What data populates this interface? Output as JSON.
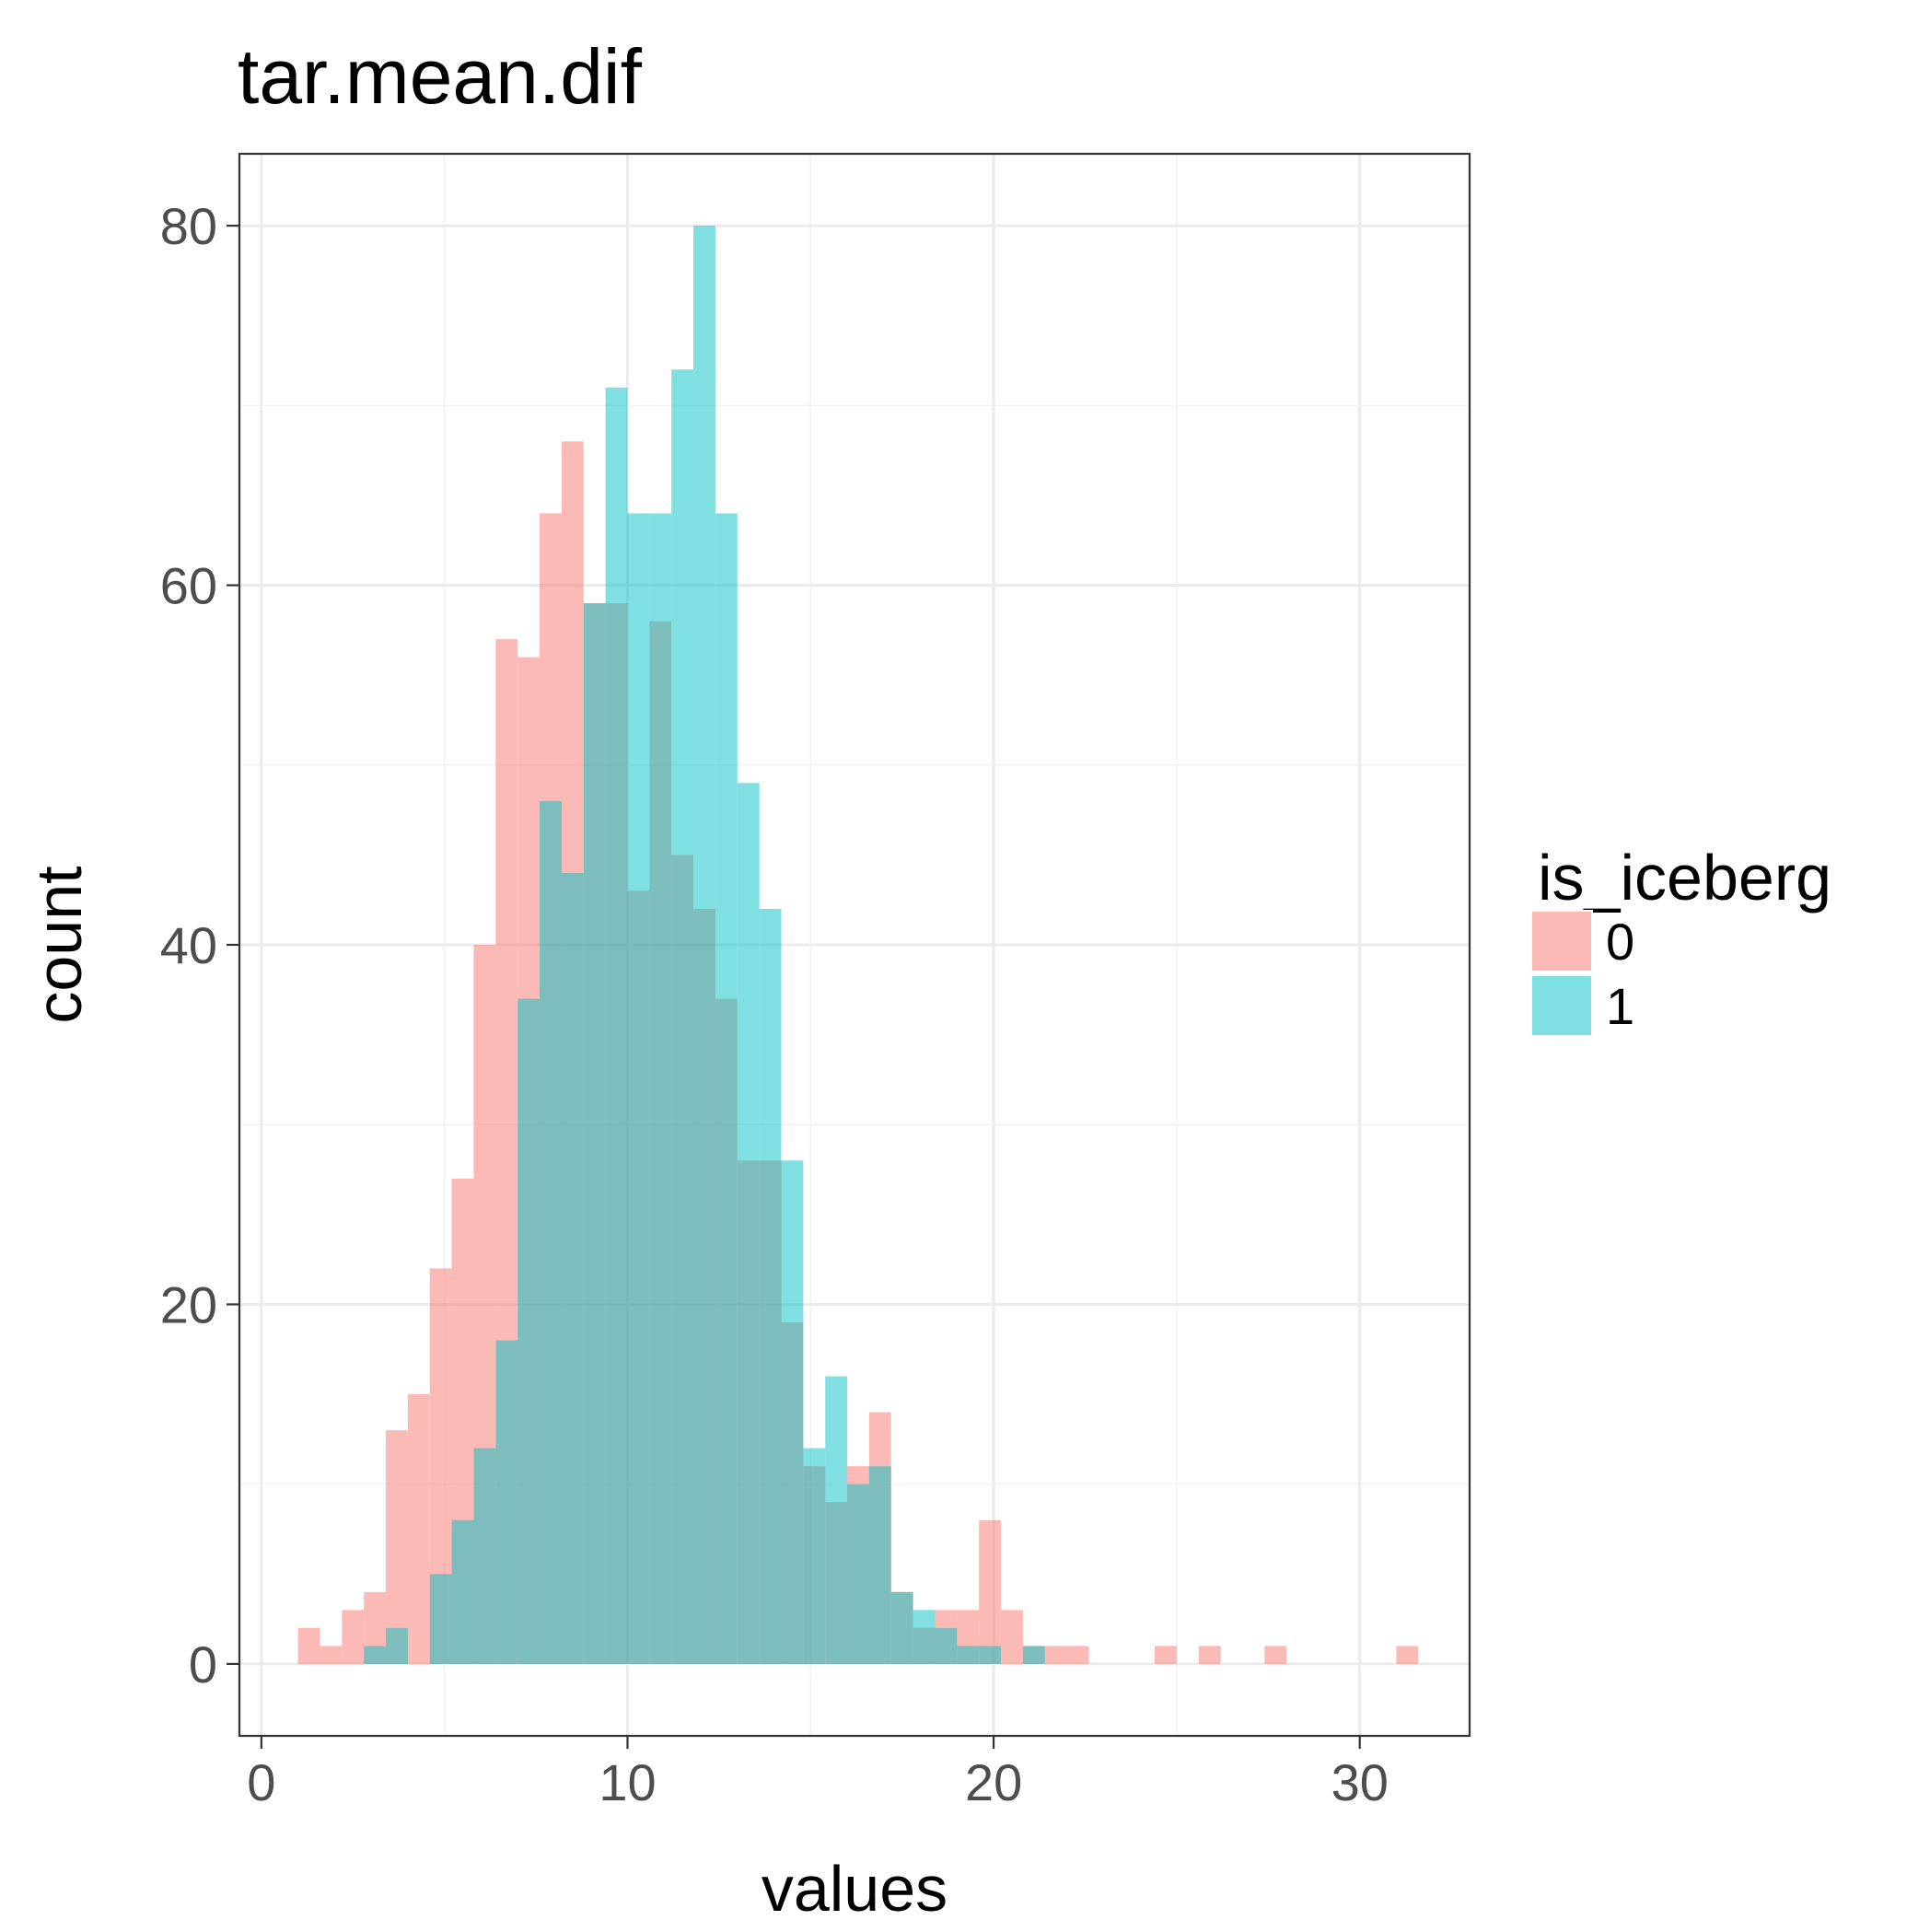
{
  "chart_data": {
    "type": "histogram",
    "title": "tar.mean.dif",
    "xlabel": "values",
    "ylabel": "count",
    "xlim": [
      -0.6,
      33
    ],
    "ylim": [
      -4,
      84
    ],
    "x_ticks": [
      0,
      10,
      20,
      30
    ],
    "x_tick_labels": [
      "0",
      "10",
      "20",
      "30"
    ],
    "y_ticks": [
      0,
      20,
      40,
      60,
      80
    ],
    "y_tick_labels": [
      "0",
      "20",
      "40",
      "60",
      "80"
    ],
    "bin_width": 0.6,
    "grid": true,
    "legend": {
      "title": "is_iceberg",
      "placement": "right",
      "entries": [
        "0",
        "1"
      ]
    },
    "series": [
      {
        "name": "0",
        "color": "#F8766D",
        "bins": [
          {
            "x0": 1.0,
            "x1": 1.6,
            "count": 2
          },
          {
            "x0": 1.6,
            "x1": 2.2,
            "count": 1
          },
          {
            "x0": 2.2,
            "x1": 2.8,
            "count": 3
          },
          {
            "x0": 2.8,
            "x1": 3.4,
            "count": 4
          },
          {
            "x0": 3.4,
            "x1": 4.0,
            "count": 13
          },
          {
            "x0": 4.0,
            "x1": 4.6,
            "count": 15
          },
          {
            "x0": 4.6,
            "x1": 5.2,
            "count": 22
          },
          {
            "x0": 5.2,
            "x1": 5.8,
            "count": 27
          },
          {
            "x0": 5.8,
            "x1": 6.4,
            "count": 40
          },
          {
            "x0": 6.4,
            "x1": 7.0,
            "count": 57
          },
          {
            "x0": 7.0,
            "x1": 7.6,
            "count": 56
          },
          {
            "x0": 7.6,
            "x1": 8.2,
            "count": 64
          },
          {
            "x0": 8.2,
            "x1": 8.8,
            "count": 68
          },
          {
            "x0": 8.8,
            "x1": 9.4,
            "count": 59
          },
          {
            "x0": 9.4,
            "x1": 10.0,
            "count": 59
          },
          {
            "x0": 10.0,
            "x1": 10.6,
            "count": 43
          },
          {
            "x0": 10.6,
            "x1": 11.2,
            "count": 58
          },
          {
            "x0": 11.2,
            "x1": 11.8,
            "count": 45
          },
          {
            "x0": 11.8,
            "x1": 12.4,
            "count": 42
          },
          {
            "x0": 12.4,
            "x1": 13.0,
            "count": 37
          },
          {
            "x0": 13.0,
            "x1": 13.6,
            "count": 28
          },
          {
            "x0": 13.6,
            "x1": 14.2,
            "count": 28
          },
          {
            "x0": 14.2,
            "x1": 14.8,
            "count": 19
          },
          {
            "x0": 14.8,
            "x1": 15.4,
            "count": 11
          },
          {
            "x0": 15.4,
            "x1": 16.0,
            "count": 9
          },
          {
            "x0": 16.0,
            "x1": 16.6,
            "count": 11
          },
          {
            "x0": 16.6,
            "x1": 17.2,
            "count": 14
          },
          {
            "x0": 17.2,
            "x1": 17.8,
            "count": 4
          },
          {
            "x0": 17.8,
            "x1": 18.4,
            "count": 2
          },
          {
            "x0": 18.4,
            "x1": 19.0,
            "count": 3
          },
          {
            "x0": 19.0,
            "x1": 19.6,
            "count": 3
          },
          {
            "x0": 19.6,
            "x1": 20.2,
            "count": 8
          },
          {
            "x0": 20.2,
            "x1": 20.8,
            "count": 3
          },
          {
            "x0": 20.8,
            "x1": 21.4,
            "count": 1
          },
          {
            "x0": 21.4,
            "x1": 22.0,
            "count": 1
          },
          {
            "x0": 22.0,
            "x1": 22.6,
            "count": 1
          },
          {
            "x0": 24.4,
            "x1": 25.0,
            "count": 1
          },
          {
            "x0": 25.6,
            "x1": 26.2,
            "count": 1
          },
          {
            "x0": 27.4,
            "x1": 28.0,
            "count": 1
          },
          {
            "x0": 31.0,
            "x1": 31.6,
            "count": 1
          }
        ]
      },
      {
        "name": "1",
        "color": "#00BFC4",
        "bins": [
          {
            "x0": 2.8,
            "x1": 3.4,
            "count": 1
          },
          {
            "x0": 3.4,
            "x1": 4.0,
            "count": 2
          },
          {
            "x0": 4.6,
            "x1": 5.2,
            "count": 5
          },
          {
            "x0": 5.2,
            "x1": 5.8,
            "count": 8
          },
          {
            "x0": 5.8,
            "x1": 6.4,
            "count": 12
          },
          {
            "x0": 6.4,
            "x1": 7.0,
            "count": 18
          },
          {
            "x0": 7.0,
            "x1": 7.6,
            "count": 37
          },
          {
            "x0": 7.6,
            "x1": 8.2,
            "count": 48
          },
          {
            "x0": 8.2,
            "x1": 8.8,
            "count": 44
          },
          {
            "x0": 8.8,
            "x1": 9.4,
            "count": 59
          },
          {
            "x0": 9.4,
            "x1": 10.0,
            "count": 71
          },
          {
            "x0": 10.0,
            "x1": 10.6,
            "count": 64
          },
          {
            "x0": 10.6,
            "x1": 11.2,
            "count": 64
          },
          {
            "x0": 11.2,
            "x1": 11.8,
            "count": 72
          },
          {
            "x0": 11.8,
            "x1": 12.4,
            "count": 80
          },
          {
            "x0": 12.4,
            "x1": 13.0,
            "count": 64
          },
          {
            "x0": 13.0,
            "x1": 13.6,
            "count": 49
          },
          {
            "x0": 13.6,
            "x1": 14.2,
            "count": 42
          },
          {
            "x0": 14.2,
            "x1": 14.8,
            "count": 28
          },
          {
            "x0": 14.8,
            "x1": 15.4,
            "count": 12
          },
          {
            "x0": 15.4,
            "x1": 16.0,
            "count": 16
          },
          {
            "x0": 16.0,
            "x1": 16.6,
            "count": 10
          },
          {
            "x0": 16.6,
            "x1": 17.2,
            "count": 11
          },
          {
            "x0": 17.2,
            "x1": 17.8,
            "count": 4
          },
          {
            "x0": 17.8,
            "x1": 18.4,
            "count": 3
          },
          {
            "x0": 18.4,
            "x1": 19.0,
            "count": 2
          },
          {
            "x0": 19.0,
            "x1": 19.6,
            "count": 1
          },
          {
            "x0": 19.6,
            "x1": 20.2,
            "count": 1
          },
          {
            "x0": 20.8,
            "x1": 21.4,
            "count": 1
          }
        ]
      }
    ]
  }
}
